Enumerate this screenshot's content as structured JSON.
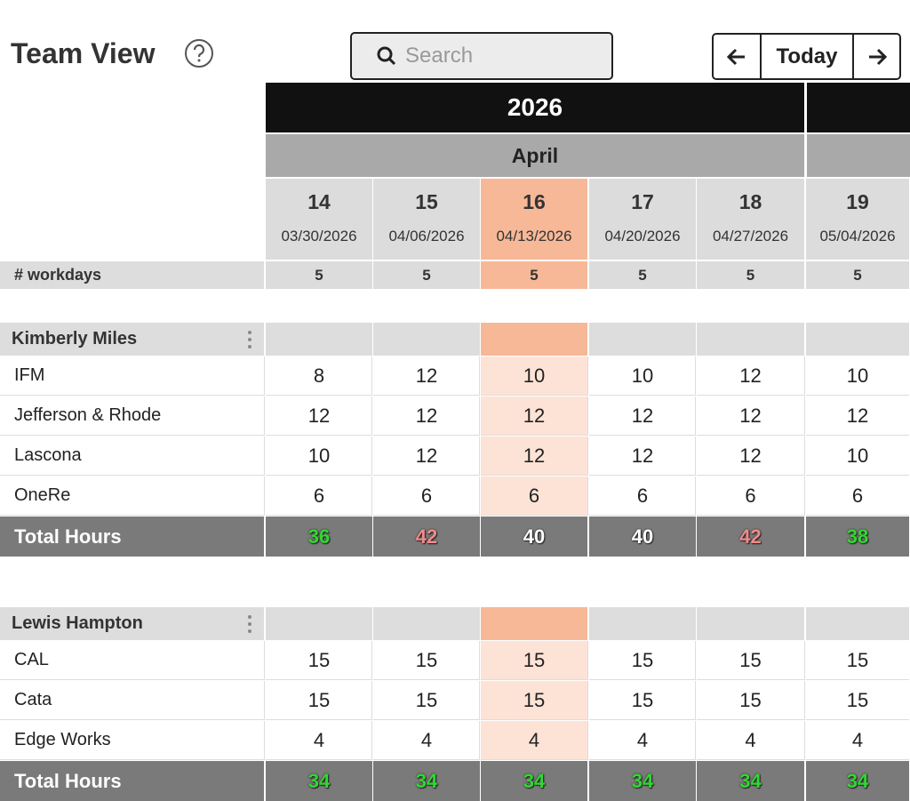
{
  "header": {
    "title": "Team View",
    "search_placeholder": "Search",
    "today_button": "Today"
  },
  "calendar": {
    "year": "2026",
    "month": "April",
    "workdays_label": "# workdays",
    "highlight_color": "#f7b897",
    "highlight_light_color": "#fce3d6",
    "weeks": [
      {
        "number": 14,
        "start": "03/30/2026",
        "workdays": 5,
        "highlighted": false
      },
      {
        "number": 15,
        "start": "04/06/2026",
        "workdays": 5,
        "highlighted": false
      },
      {
        "number": 16,
        "start": "04/13/2026",
        "workdays": 5,
        "highlighted": true
      },
      {
        "number": 17,
        "start": "04/20/2026",
        "workdays": 5,
        "highlighted": false
      },
      {
        "number": 18,
        "start": "04/27/2026",
        "workdays": 5,
        "highlighted": false
      },
      {
        "number": 19,
        "start": "05/04/2026",
        "workdays": 5,
        "highlighted": false
      }
    ]
  },
  "teams": [
    {
      "name": "Kimberly Miles",
      "total_label": "Total Hours",
      "projects": [
        {
          "name": "IFM",
          "hours": [
            8,
            12,
            10,
            10,
            12,
            10
          ]
        },
        {
          "name": "Jefferson & Rhode",
          "hours": [
            12,
            12,
            12,
            12,
            12,
            12
          ]
        },
        {
          "name": "Lascona",
          "hours": [
            10,
            12,
            12,
            12,
            12,
            10
          ]
        },
        {
          "name": "OneRe",
          "hours": [
            6,
            6,
            6,
            6,
            6,
            6
          ]
        }
      ],
      "totals": [
        36,
        42,
        40,
        40,
        42,
        38
      ],
      "total_colors": [
        "#33d633",
        "#f08a8a",
        "#ffffff",
        "#ffffff",
        "#f08a8a",
        "#33d633"
      ]
    },
    {
      "name": "Lewis Hampton",
      "total_label": "Total Hours",
      "projects": [
        {
          "name": "CAL",
          "hours": [
            15,
            15,
            15,
            15,
            15,
            15
          ]
        },
        {
          "name": "Cata",
          "hours": [
            15,
            15,
            15,
            15,
            15,
            15
          ]
        },
        {
          "name": "Edge Works",
          "hours": [
            4,
            4,
            4,
            4,
            4,
            4
          ]
        }
      ],
      "totals": [
        34,
        34,
        34,
        34,
        34,
        34
      ],
      "total_colors": [
        "#33d633",
        "#33d633",
        "#33d633",
        "#33d633",
        "#33d633",
        "#33d633"
      ]
    }
  ]
}
